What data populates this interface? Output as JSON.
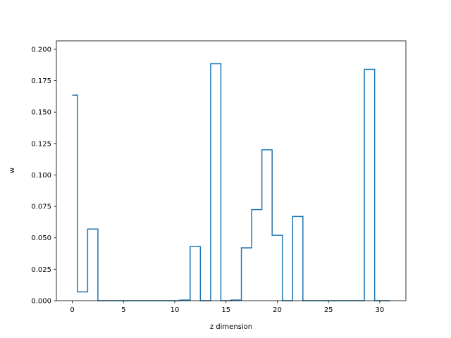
{
  "chart_data": {
    "type": "line",
    "drawstyle": "steps-mid",
    "xlabel": "z dimension",
    "ylabel": "w",
    "xlim": [
      -1.55,
      32.55
    ],
    "ylim": [
      0,
      0.2067
    ],
    "xticks": [
      0,
      5,
      10,
      15,
      20,
      25,
      30
    ],
    "yticks": [
      0.0,
      0.025,
      0.05,
      0.075,
      0.1,
      0.125,
      0.15,
      0.175,
      0.2
    ],
    "ytick_labels": [
      "0.000",
      "0.025",
      "0.050",
      "0.075",
      "0.100",
      "0.125",
      "0.150",
      "0.175",
      "0.200"
    ],
    "grid": false,
    "line_color": "#1f77b4",
    "x": [
      0,
      1,
      2,
      3,
      4,
      5,
      6,
      7,
      8,
      9,
      10,
      11,
      12,
      13,
      14,
      15,
      16,
      17,
      18,
      19,
      20,
      21,
      22,
      23,
      24,
      25,
      26,
      27,
      28,
      29,
      30,
      31
    ],
    "values": [
      0.1635,
      0.007,
      0.057,
      0.0,
      0.0,
      0.0,
      0.0,
      0.0,
      0.0,
      0.0,
      0.0,
      0.0005,
      0.043,
      0.0,
      0.1885,
      0.0,
      0.0005,
      0.042,
      0.0725,
      0.12,
      0.052,
      0.0,
      0.067,
      0.0,
      0.0,
      0.0,
      0.0,
      0.0,
      0.0,
      0.184,
      0.0,
      0.0
    ]
  }
}
